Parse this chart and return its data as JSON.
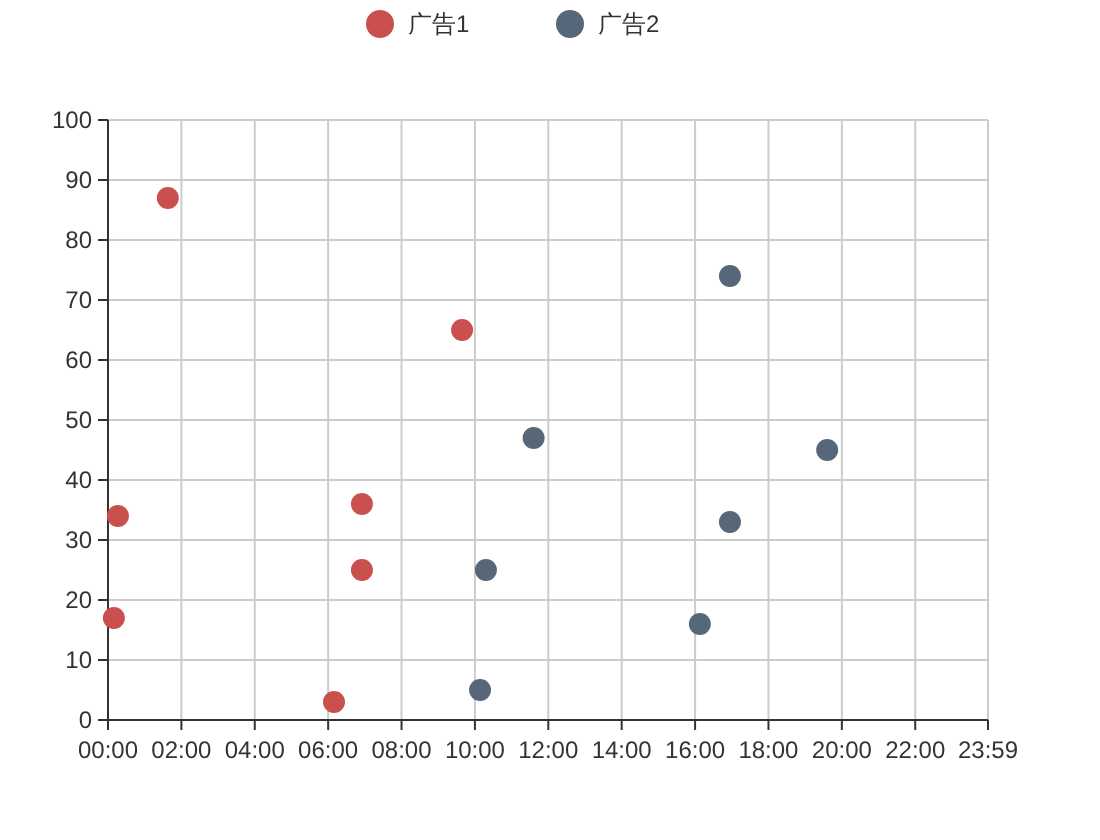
{
  "chart_data": {
    "type": "scatter",
    "legend": "top",
    "grid": true,
    "marker": "circle",
    "xlim": [
      0,
      23.9833
    ],
    "xticks": [
      {
        "value": 0,
        "label": "00:00"
      },
      {
        "value": 2,
        "label": "02:00"
      },
      {
        "value": 4,
        "label": "04:00"
      },
      {
        "value": 6,
        "label": "06:00"
      },
      {
        "value": 8,
        "label": "08:00"
      },
      {
        "value": 10,
        "label": "10:00"
      },
      {
        "value": 12,
        "label": "12:00"
      },
      {
        "value": 14,
        "label": "14:00"
      },
      {
        "value": 16,
        "label": "16:00"
      },
      {
        "value": 18,
        "label": "18:00"
      },
      {
        "value": 20,
        "label": "20:00"
      },
      {
        "value": 22,
        "label": "22:00"
      },
      {
        "value": 23.9833,
        "label": "23:59"
      }
    ],
    "ylim": [
      0,
      100
    ],
    "yticks": [
      0,
      10,
      20,
      30,
      40,
      50,
      60,
      70,
      80,
      90,
      100
    ],
    "series": [
      {
        "name": "广告1",
        "color": "#c9504d",
        "x": [
          0.16,
          1.63,
          0.27,
          6.92,
          6.92,
          6.16,
          9.65
        ],
        "values": [
          17,
          87,
          34,
          36,
          25,
          3,
          65
        ]
      },
      {
        "name": "广告2",
        "color": "#56677a",
        "x": [
          16.95,
          11.6,
          19.6,
          16.95,
          10.3,
          16.13,
          10.14
        ],
        "values": [
          74,
          47,
          45,
          33,
          25,
          16,
          5
        ]
      }
    ]
  }
}
